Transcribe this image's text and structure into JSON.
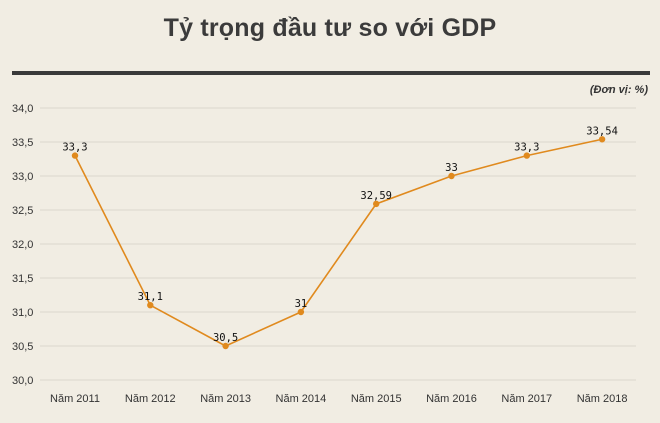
{
  "header": {
    "title": "Tỷ trọng đầu tư so với GDP",
    "unit_note": "(Đơn vị: %)"
  },
  "colors": {
    "background": "#f1ede3",
    "line": "#e08a1e",
    "marker": "#e08a1e",
    "grid": "#dcd8ce",
    "rule": "#3a3a3a"
  },
  "chart_data": {
    "type": "line",
    "title": "Tỷ trọng đầu tư so với GDP",
    "xlabel": "",
    "ylabel": "",
    "categories": [
      "Năm 2011",
      "Năm 2012",
      "Năm 2013",
      "Năm 2014",
      "Năm 2015",
      "Năm 2016",
      "Năm 2017",
      "Năm 2018"
    ],
    "series": [
      {
        "name": "Tỷ trọng đầu tư so với GDP",
        "values": [
          33.3,
          31.1,
          30.5,
          31,
          32.59,
          33,
          33.3,
          33.54
        ],
        "labels": [
          "33,3",
          "31,1",
          "30,5",
          "31",
          "32,59",
          "33",
          "33,3",
          "33,54"
        ]
      }
    ],
    "ylim": [
      30.0,
      34.0
    ],
    "yticks": [
      30.0,
      30.5,
      31.0,
      31.5,
      32.0,
      32.5,
      33.0,
      33.5,
      34.0
    ],
    "ytick_labels": [
      "30,0",
      "30,5",
      "31,0",
      "31,5",
      "32,0",
      "32,5",
      "33,0",
      "33,5",
      "34,0"
    ],
    "grid": true,
    "legend": "none"
  }
}
